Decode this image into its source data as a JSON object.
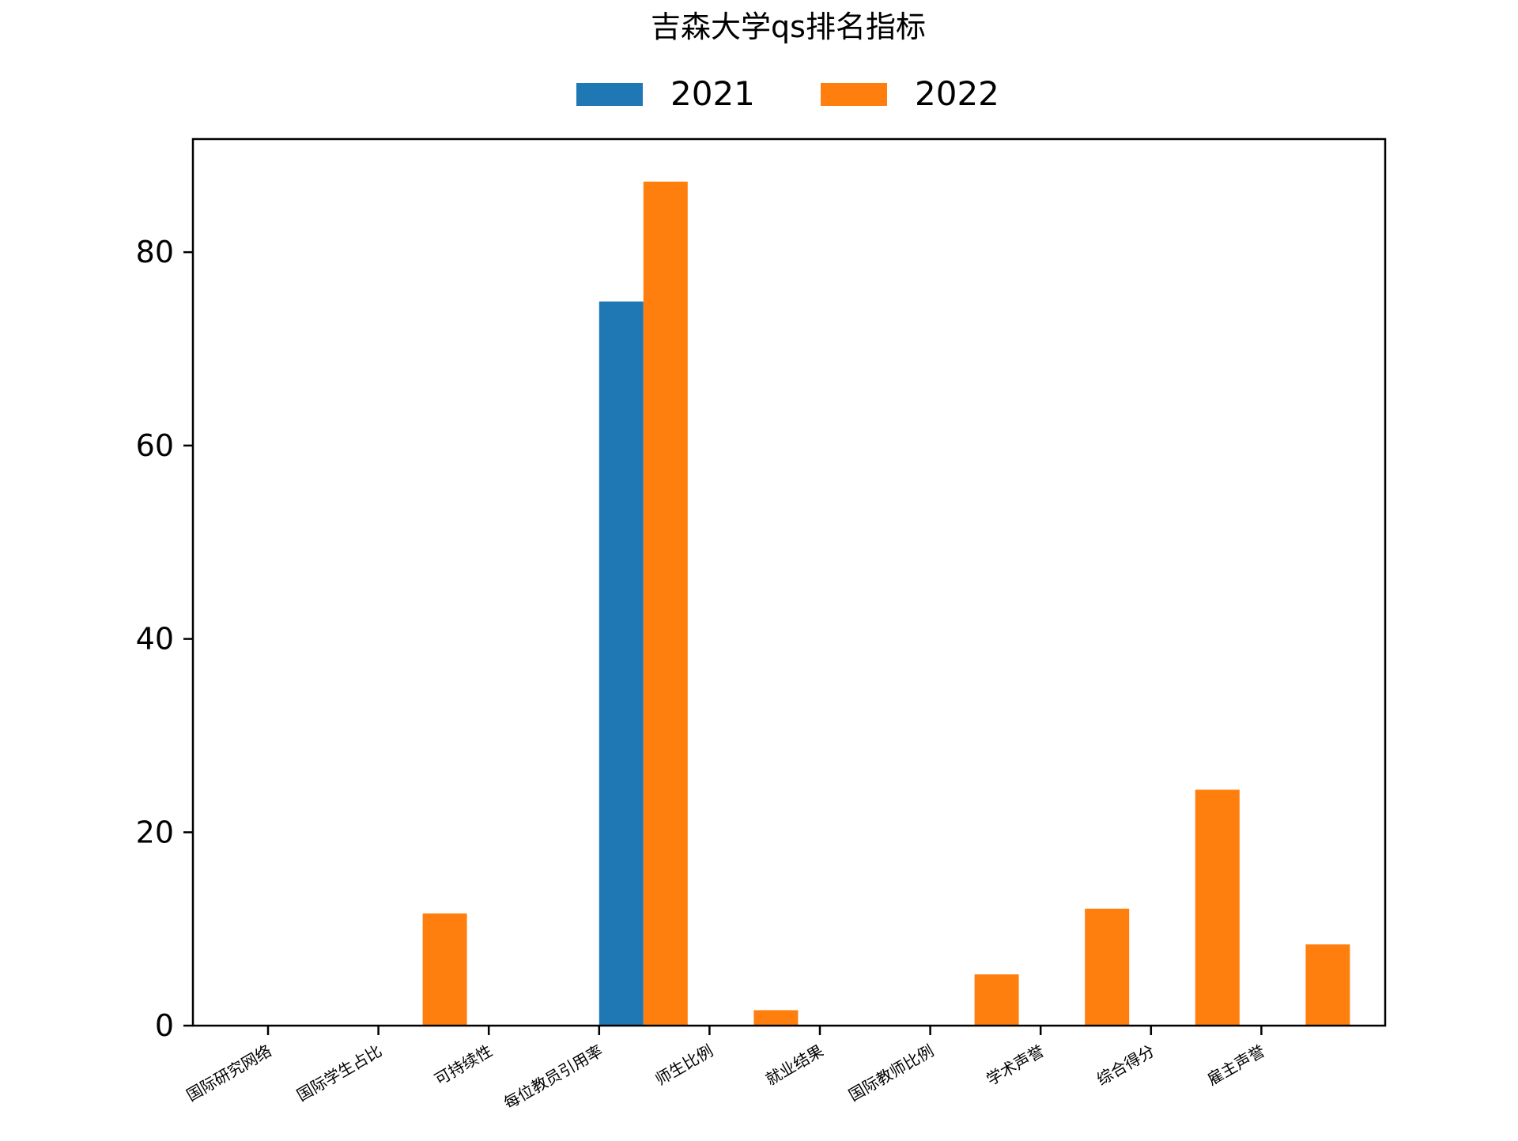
{
  "chart_data": {
    "type": "bar",
    "title": "吉森大学qs排名指标",
    "xlabel": "",
    "ylabel": "",
    "categories": [
      "国际研究网络",
      "国际学生占比",
      "可持续性",
      "每位教员引用率",
      "师生比例",
      "就业结果",
      "国际教师比例",
      "学术声誉",
      "综合得分",
      "雇主声誉"
    ],
    "series": [
      {
        "name": "2021",
        "color": "#1f77b4",
        "values": [
          0,
          0,
          0,
          74.9,
          0,
          0,
          0,
          0,
          0,
          0
        ]
      },
      {
        "name": "2022",
        "color": "#ff7f0e",
        "values": [
          0,
          11.6,
          0,
          87.3,
          1.6,
          0,
          5.3,
          12.1,
          24.4,
          8.4
        ]
      }
    ],
    "ylim": [
      0,
      91.7
    ],
    "yticks": [
      0,
      20,
      40,
      60,
      80
    ],
    "grid": false,
    "legend_position": "top-center"
  }
}
